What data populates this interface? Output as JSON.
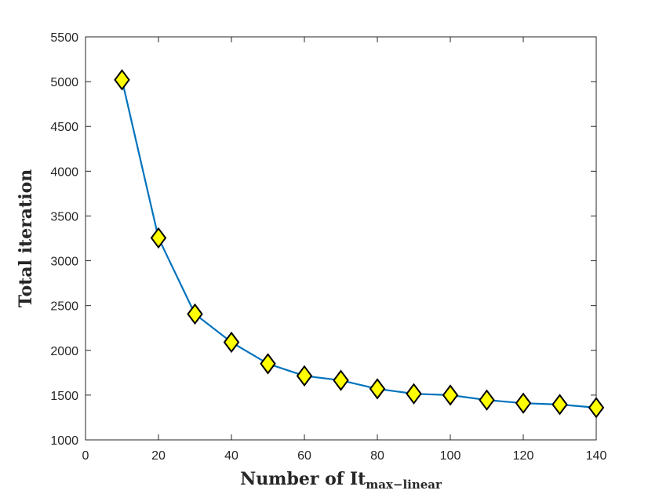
{
  "chart_data": {
    "type": "line",
    "title": "",
    "xlabel": "Number of It",
    "xlabel_subscript": "max−linear",
    "ylabel": "Total iteration",
    "xlim": [
      0,
      140
    ],
    "ylim": [
      1000,
      5500
    ],
    "x_ticks": [
      0,
      20,
      40,
      60,
      80,
      100,
      120,
      140
    ],
    "y_ticks": [
      1000,
      1500,
      2000,
      2500,
      3000,
      3500,
      4000,
      4500,
      5000,
      5500
    ],
    "grid": false,
    "legend": "none",
    "series": [
      {
        "x": [
          10,
          20,
          30,
          40,
          50,
          60,
          70,
          80,
          90,
          100,
          110,
          120,
          130,
          140
        ],
        "y": [
          5020,
          3255,
          2405,
          2090,
          1850,
          1715,
          1665,
          1570,
          1515,
          1500,
          1445,
          1410,
          1395,
          1360
        ],
        "line_color": "#0072BD",
        "marker": "diamond",
        "marker_fill": "#FFFF00",
        "marker_edge": "#000000"
      }
    ]
  }
}
